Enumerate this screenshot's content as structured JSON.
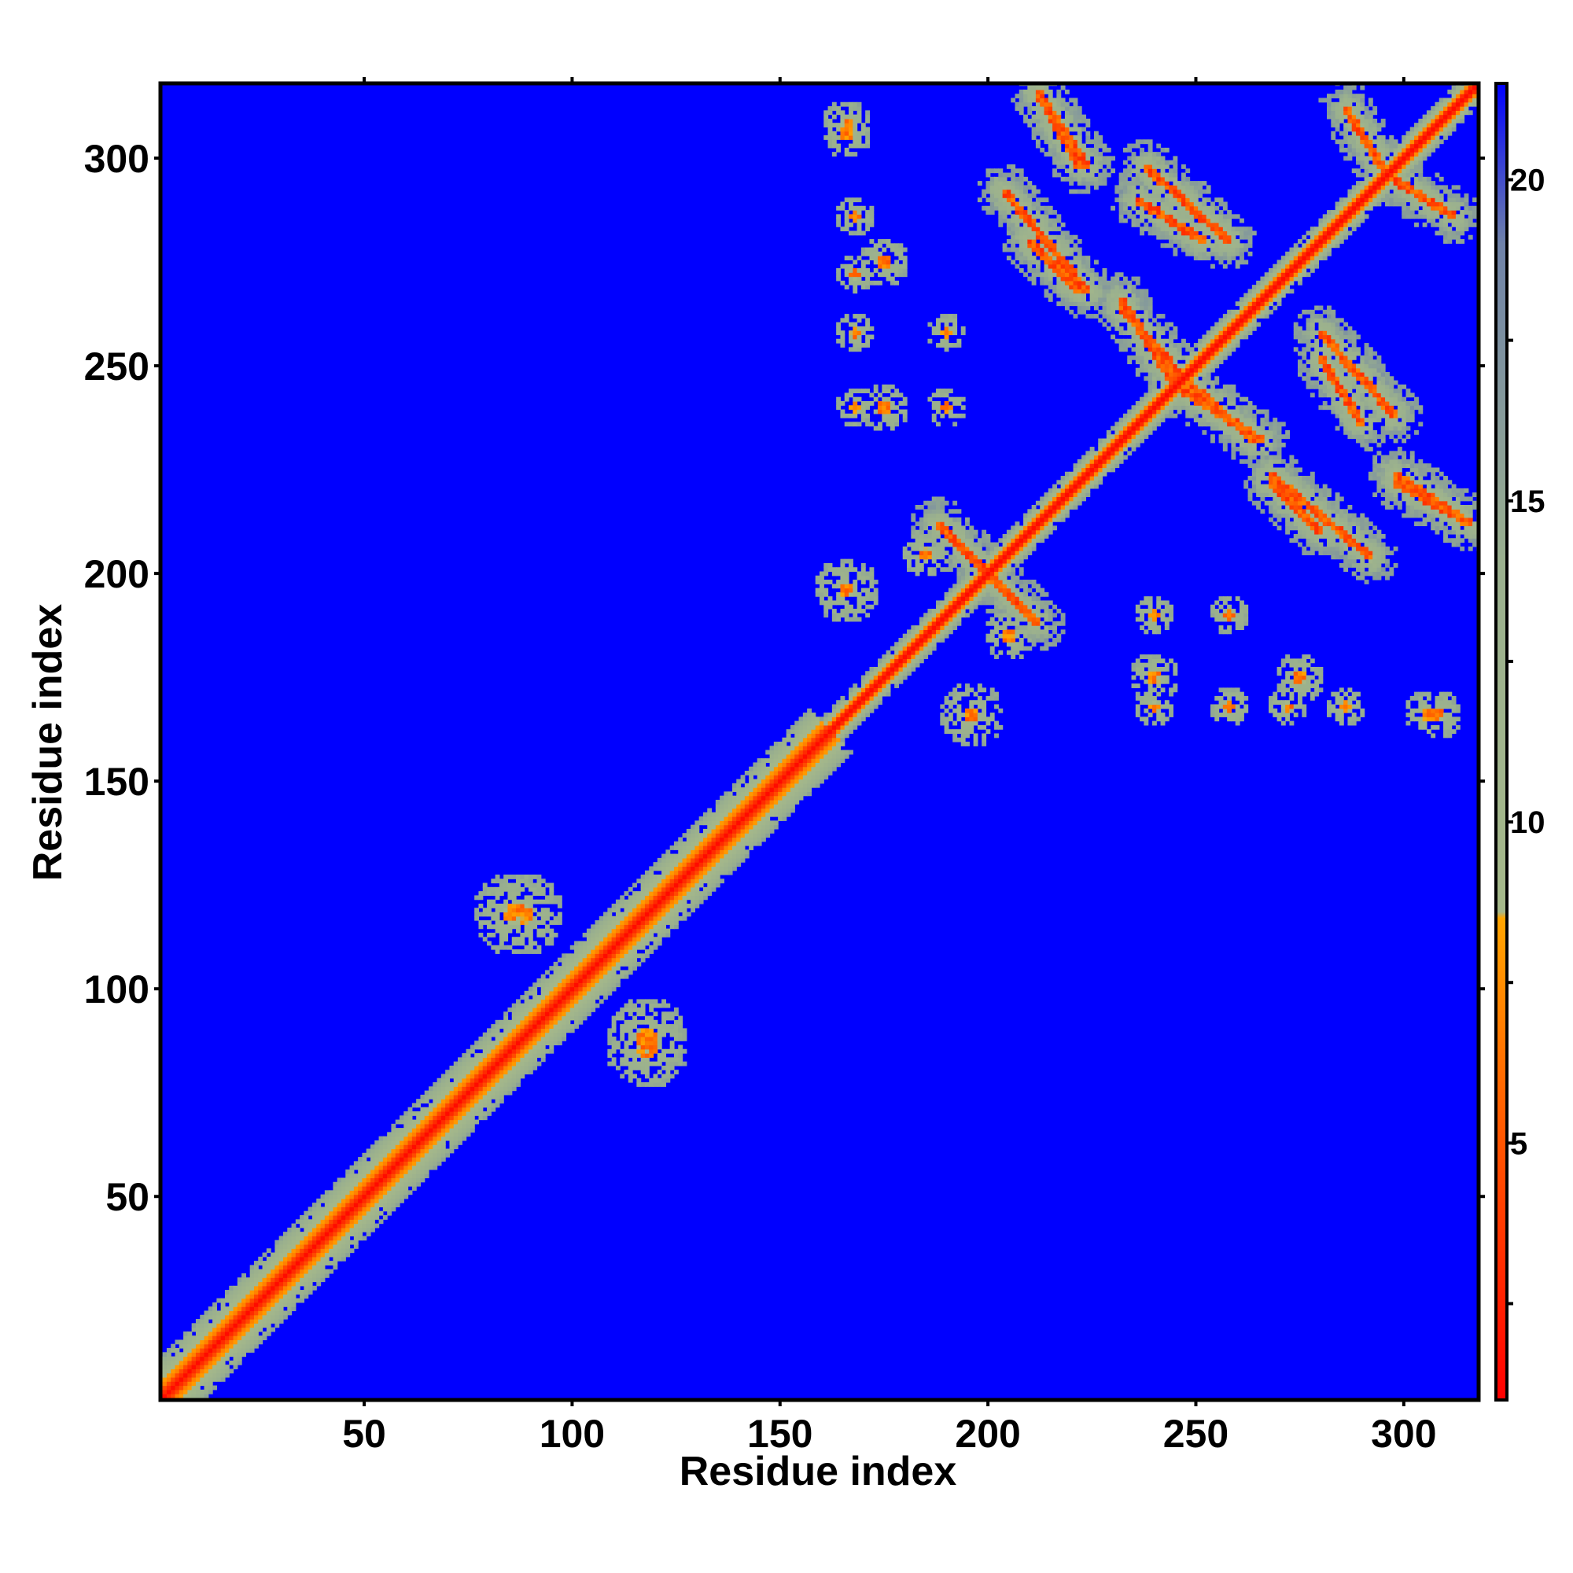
{
  "chart_data": {
    "type": "heatmap",
    "title": "",
    "xlabel": "Residue index",
    "ylabel": "Residue index",
    "xlim": [
      1,
      318
    ],
    "ylim": [
      1,
      318
    ],
    "x_ticks": [
      50,
      100,
      150,
      200,
      250,
      300
    ],
    "y_ticks": [
      50,
      100,
      150,
      200,
      250,
      300
    ],
    "colorbar": {
      "range": [
        1,
        21.5
      ],
      "ticks": [
        5,
        10,
        15,
        20
      ],
      "minor_ticks": [
        2.5,
        7.5,
        12.5,
        17.5
      ],
      "stops": [
        {
          "value": 1,
          "color": "#ff0000"
        },
        {
          "value": 6,
          "color": "#ff6a00"
        },
        {
          "value": 8.5,
          "color": "#ffa500"
        },
        {
          "value": 8.6,
          "color": "#a5b88a"
        },
        {
          "value": 14,
          "color": "#9ab08e"
        },
        {
          "value": 19,
          "color": "#6f82a8"
        },
        {
          "value": 21.5,
          "color": "#0000ff"
        }
      ]
    },
    "background_color": "#0000ff",
    "symmetric": true,
    "diagonal_bands": [
      {
        "start": 1,
        "end": 160,
        "core_halfwidth": 2,
        "mid_halfwidth": 6,
        "outer_halfwidth": 10
      },
      {
        "start": 160,
        "end": 318,
        "core_halfwidth": 1.5,
        "mid_halfwidth": 3,
        "outer_halfwidth": 5
      }
    ],
    "antiparallel_strands": [
      {
        "x": [
          200,
          212
        ],
        "y": [
          200,
          188
        ]
      },
      {
        "x": [
          210,
          222
        ],
        "y": [
          280,
          268
        ]
      },
      {
        "x": [
          212,
          222
        ],
        "y": [
          316,
          298
        ]
      },
      {
        "x": [
          236,
          252
        ],
        "y": [
          290,
          280
        ]
      },
      {
        "x": [
          232,
          248
        ],
        "y": [
          264,
          246
        ]
      },
      {
        "x": [
          244,
          266
        ],
        "y": [
          246,
          232
        ]
      },
      {
        "x": [
          268,
          292
        ],
        "y": [
          224,
          204
        ]
      },
      {
        "x": [
          280,
          298
        ],
        "y": [
          258,
          238
        ]
      },
      {
        "x": [
          298,
          316
        ],
        "y": [
          224,
          212
        ]
      },
      {
        "x": [
          296,
          312
        ],
        "y": [
          296,
          286
        ]
      }
    ],
    "contact_clusters": [
      {
        "x": 86,
        "y": 118,
        "radius": 10
      },
      {
        "x": 118,
        "y": 88,
        "radius": 10
      },
      {
        "x": 166,
        "y": 306,
        "radius": 6
      },
      {
        "x": 196,
        "y": 166,
        "radius": 8
      },
      {
        "x": 308,
        "y": 166,
        "radius": 6
      },
      {
        "x": 166,
        "y": 196,
        "radius": 7
      },
      {
        "x": 185,
        "y": 205,
        "radius": 6
      },
      {
        "x": 205,
        "y": 185,
        "radius": 6
      },
      {
        "x": 168,
        "y": 258,
        "radius": 5
      },
      {
        "x": 168,
        "y": 240,
        "radius": 5
      },
      {
        "x": 190,
        "y": 240,
        "radius": 5
      },
      {
        "x": 190,
        "y": 258,
        "radius": 5
      },
      {
        "x": 168,
        "y": 272,
        "radius": 5
      },
      {
        "x": 168,
        "y": 286,
        "radius": 5
      },
      {
        "x": 240,
        "y": 175,
        "radius": 6
      },
      {
        "x": 275,
        "y": 175,
        "radius": 6
      }
    ],
    "sheet_region": {
      "x": [
        190,
        318
      ],
      "y": [
        190,
        318
      ]
    },
    "other_region": {
      "x": [
        164,
        318
      ],
      "y": [
        164,
        232
      ]
    }
  }
}
